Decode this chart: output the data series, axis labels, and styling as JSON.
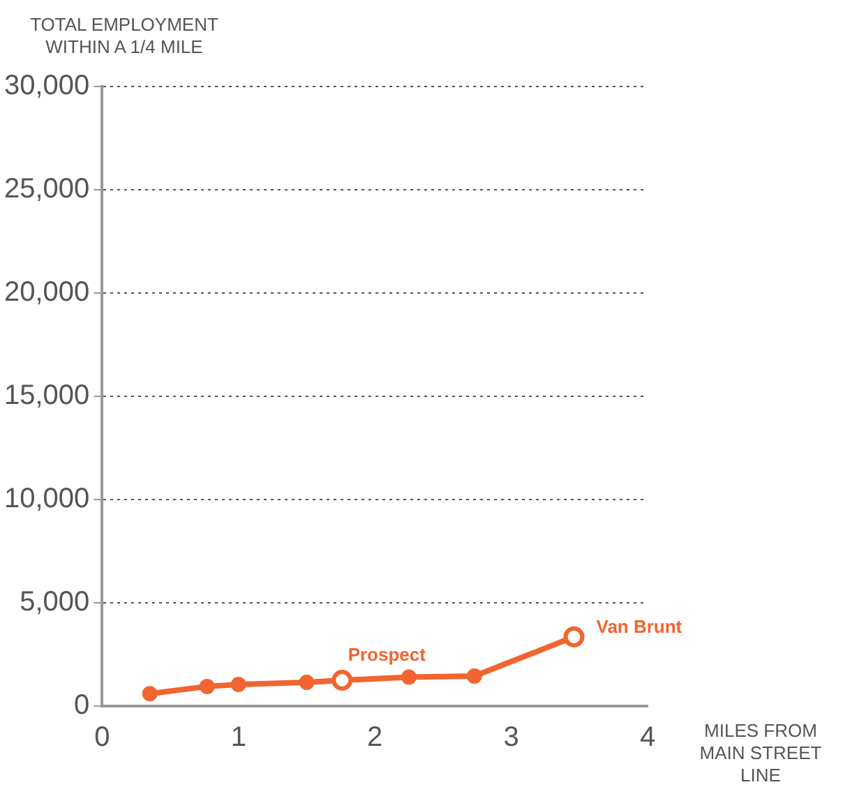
{
  "chart_data": {
    "type": "line",
    "ylabel": "TOTAL EMPLOYMENT WITHIN A 1/4 MILE",
    "xlabel": "MILES FROM MAIN STREET LINE",
    "x": [
      0.35,
      0.77,
      1.0,
      1.5,
      1.76,
      2.25,
      2.73,
      3.46
    ],
    "series": [
      {
        "color": "#f26430",
        "values": [
          600,
          950,
          1050,
          1150,
          1250,
          1400,
          1450,
          3350
        ]
      }
    ],
    "xlim": [
      0,
      4
    ],
    "xticks": [
      0,
      1,
      2,
      3,
      4
    ],
    "ylim": [
      0,
      30000
    ],
    "yticks": [
      0,
      {
        "value": 5000,
        "label": "5,000"
      },
      {
        "value": 10000,
        "label": "10,000"
      },
      {
        "value": 15000,
        "label": "15,000"
      },
      {
        "value": 20000,
        "label": "20,000"
      },
      {
        "value": 25000,
        "label": "25,000"
      },
      {
        "value": 30000,
        "label": "30,000"
      }
    ],
    "grid": "y",
    "legend": false,
    "marker": "circle",
    "line_style": "solid",
    "annotations": [
      {
        "text": "Prospect",
        "x": 1.76,
        "y": 1250
      },
      {
        "text": "Van Brunt",
        "x": 3.46,
        "y": 3350
      }
    ]
  }
}
